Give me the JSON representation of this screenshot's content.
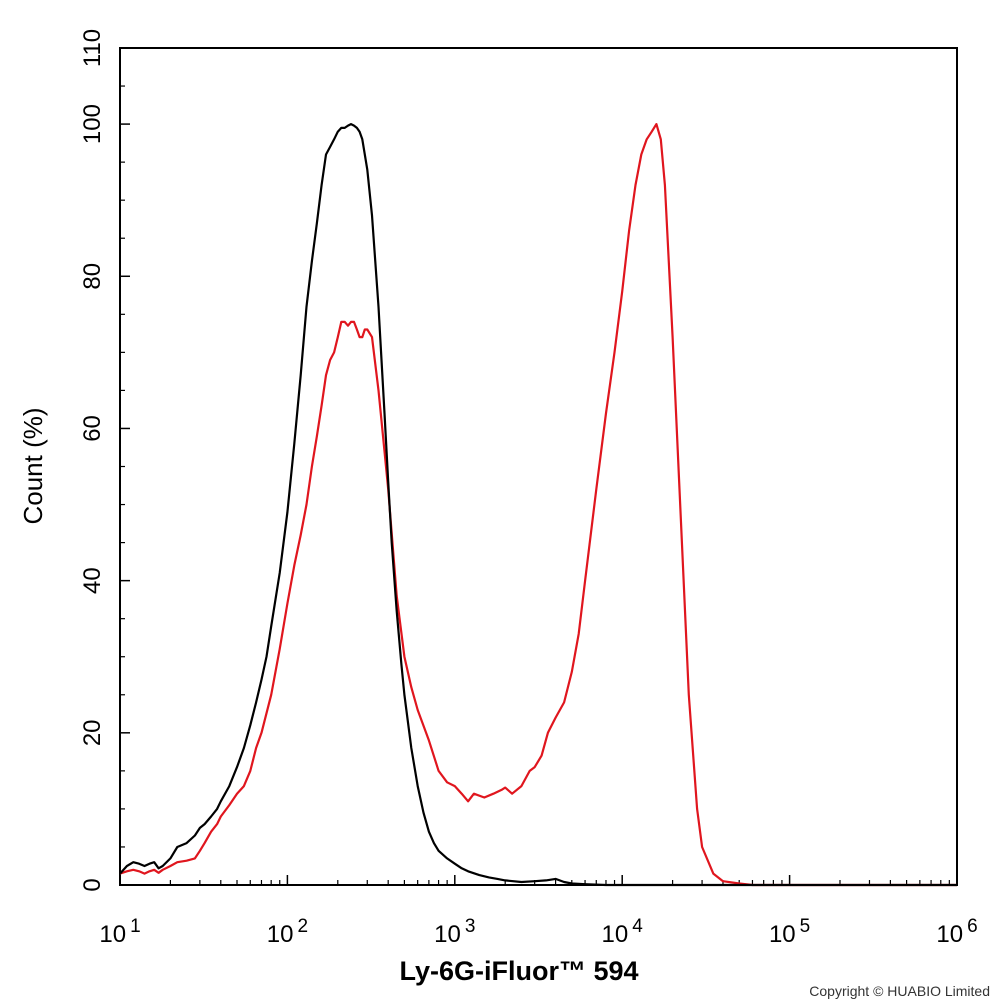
{
  "chart_data": {
    "type": "line",
    "xscale": "log",
    "xlim": [
      10,
      1000000
    ],
    "ylim": [
      0,
      110
    ],
    "xlabel": "Ly-6G-iFluor™ 594",
    "ylabel": "Count  (%)",
    "x_ticks": [
      {
        "value": 10,
        "base": "10",
        "exp": "1"
      },
      {
        "value": 100,
        "base": "10",
        "exp": "2"
      },
      {
        "value": 1000,
        "base": "10",
        "exp": "3"
      },
      {
        "value": 10000,
        "base": "10",
        "exp": "4"
      },
      {
        "value": 100000,
        "base": "10",
        "exp": "5"
      },
      {
        "value": 1000000,
        "base": "10",
        "exp": "6"
      }
    ],
    "y_ticks": [
      "0",
      "20",
      "40",
      "60",
      "80",
      "100",
      "110"
    ],
    "grid": false,
    "series": [
      {
        "color": "#000000",
        "x": [
          10,
          11,
          12,
          13,
          14,
          15,
          16,
          17,
          18,
          20,
          22,
          25,
          28,
          30,
          32,
          35,
          38,
          40,
          45,
          50,
          55,
          60,
          65,
          70,
          75,
          80,
          90,
          100,
          110,
          120,
          130,
          140,
          150,
          160,
          170,
          180,
          190,
          200,
          210,
          220,
          230,
          240,
          250,
          260,
          270,
          280,
          300,
          320,
          350,
          380,
          400,
          420,
          450,
          480,
          500,
          550,
          600,
          650,
          700,
          750,
          800,
          900,
          1000,
          1100,
          1200,
          1400,
          1600,
          1800,
          2000,
          2500,
          3000,
          3500,
          4000,
          4500,
          5000,
          6000,
          8000,
          10000,
          100000,
          1000000
        ],
        "y": [
          1.5,
          2.5,
          3,
          2.8,
          2.5,
          2.8,
          3,
          2.2,
          2.5,
          3.5,
          5,
          5.5,
          6.5,
          7.5,
          8,
          9,
          10,
          11,
          13,
          15.5,
          18,
          21,
          24,
          27,
          30,
          34,
          41,
          49,
          58,
          67,
          76,
          82,
          87,
          92,
          96,
          97,
          98,
          99,
          99.5,
          99.5,
          99.8,
          100,
          99.8,
          99.5,
          99,
          98,
          94,
          88,
          76,
          62,
          53,
          45,
          36,
          29,
          25,
          18,
          13,
          9.5,
          7,
          5.5,
          4.5,
          3.5,
          2.8,
          2.2,
          1.8,
          1.3,
          1,
          0.8,
          0.6,
          0.4,
          0.5,
          0.6,
          0.8,
          0.4,
          0.2,
          0.1,
          0,
          0,
          0,
          0
        ]
      },
      {
        "color": "#e0161e",
        "x": [
          10,
          11,
          12,
          13,
          14,
          15,
          16,
          17,
          18,
          20,
          22,
          25,
          28,
          30,
          32,
          35,
          38,
          40,
          45,
          50,
          55,
          60,
          65,
          70,
          80,
          90,
          100,
          110,
          120,
          130,
          140,
          150,
          160,
          170,
          180,
          190,
          200,
          210,
          220,
          230,
          240,
          250,
          260,
          270,
          280,
          290,
          300,
          320,
          350,
          380,
          400,
          450,
          500,
          550,
          600,
          700,
          800,
          900,
          1000,
          1100,
          1200,
          1300,
          1500,
          1700,
          1900,
          2000,
          2200,
          2500,
          2800,
          3000,
          3300,
          3600,
          4000,
          4500,
          5000,
          5500,
          6000,
          7000,
          8000,
          9000,
          10000,
          11000,
          12000,
          13000,
          14000,
          15000,
          16000,
          17000,
          18000,
          20000,
          22000,
          25000,
          28000,
          30000,
          35000,
          40000,
          50000,
          60000,
          100000,
          1000000
        ],
        "y": [
          1.5,
          1.8,
          2,
          1.8,
          1.5,
          1.8,
          2,
          1.6,
          2,
          2.5,
          3,
          3.2,
          3.5,
          4.5,
          5.5,
          7,
          8,
          9,
          10.5,
          12,
          13,
          15,
          18,
          20,
          25,
          31,
          37,
          42,
          46,
          50,
          55,
          59,
          63,
          67,
          69,
          70,
          72,
          74,
          74,
          73.5,
          74,
          74,
          73,
          72,
          72,
          73,
          73,
          72,
          65,
          57,
          52,
          38,
          30,
          26,
          23,
          19,
          15,
          13.5,
          13,
          12,
          11,
          12,
          11.5,
          12,
          12.5,
          12.8,
          12,
          13,
          15,
          15.5,
          17,
          20,
          22,
          24,
          28,
          33,
          40,
          52,
          62,
          70,
          78,
          86,
          92,
          96,
          98,
          99,
          100,
          98,
          92,
          72,
          52,
          25,
          10,
          5,
          1.5,
          0.5,
          0.2,
          0,
          0,
          0
        ]
      }
    ]
  },
  "copyright": "Copyright © HUABIO Limited"
}
